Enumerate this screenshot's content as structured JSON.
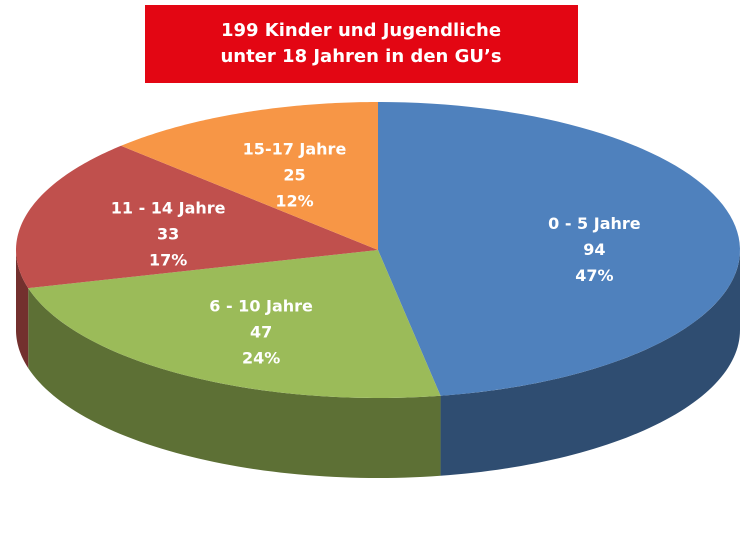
{
  "chart_data": {
    "type": "pie3d",
    "title": [
      "199 Kinder und Jugendliche",
      "unter 18 Jahren in den GU’s"
    ],
    "categories": [
      "0 - 5 Jahre",
      "6 - 10 Jahre",
      "11 - 14 Jahre",
      "15-17 Jahre"
    ],
    "values": [
      94,
      47,
      33,
      25
    ],
    "percent_labels": [
      "47%",
      "24%",
      "17%",
      "12%"
    ],
    "colors": [
      "#4f81bd",
      "#9bbb59",
      "#c0504d",
      "#f79646"
    ]
  }
}
